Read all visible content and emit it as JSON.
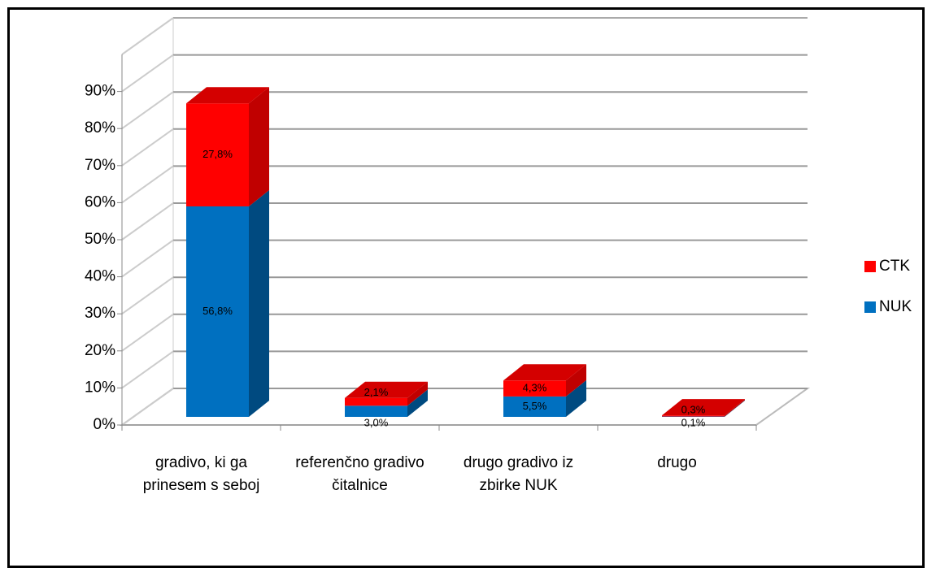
{
  "chart_data": {
    "type": "bar3d_stacked",
    "categories": [
      "gradivo, ki ga prinesem s seboj",
      "referenčno gradivo čitalnice",
      "drugo gradivo iz zbirke NUK",
      "drugo"
    ],
    "series": [
      {
        "name": "NUK",
        "color": "#0070c0",
        "values": [
          56.8,
          3.0,
          5.5,
          0.1
        ],
        "value_labels": [
          "56,8%",
          "3,0%",
          "5,5%",
          "0,1%"
        ]
      },
      {
        "name": "CTK",
        "color": "#ff0000",
        "values": [
          27.8,
          2.1,
          4.3,
          0.3
        ],
        "value_labels": [
          "27,8%",
          "2,1%",
          "4,3%",
          "0,3%"
        ]
      }
    ],
    "ylim": [
      0,
      100
    ],
    "yticks": [
      {
        "value": 0,
        "label": "0%"
      },
      {
        "value": 10,
        "label": "10%"
      },
      {
        "value": 20,
        "label": "20%"
      },
      {
        "value": 30,
        "label": "30%"
      },
      {
        "value": 40,
        "label": "40%"
      },
      {
        "value": 50,
        "label": "50%"
      },
      {
        "value": 60,
        "label": "60%"
      },
      {
        "value": 70,
        "label": "70%"
      },
      {
        "value": 80,
        "label": "80%"
      },
      {
        "value": 90,
        "label": "90%"
      }
    ],
    "grid": true,
    "legend": "right"
  }
}
